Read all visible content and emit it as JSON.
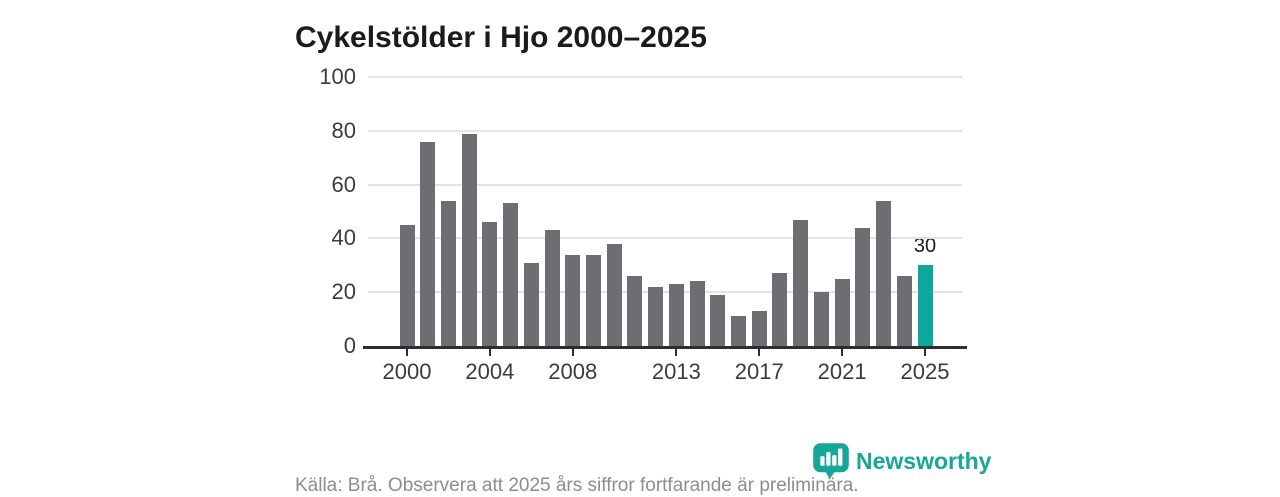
{
  "title": "Cykelstölder i Hjo 2000–2025",
  "footer": {
    "source_note": "Källa: Brå. Observera att 2025 års siffror fortfarande är preliminära.",
    "brand": "Newsworthy"
  },
  "colors": {
    "title_text": "#1b1b1b",
    "tick_text": "#3c3c3c",
    "gridline": "#e4e4e4",
    "axis": "#2e2e2e",
    "bar": "#6e6e72",
    "highlight": "#0da89d",
    "footer_text": "#8d8d92",
    "brand_teal": "#16a69a"
  },
  "chart_data": {
    "type": "bar",
    "title": "Cykelstölder i Hjo 2000–2025",
    "x": [
      2000,
      2001,
      2002,
      2003,
      2004,
      2005,
      2006,
      2007,
      2008,
      2009,
      2010,
      2011,
      2012,
      2013,
      2014,
      2015,
      2016,
      2017,
      2018,
      2019,
      2020,
      2021,
      2022,
      2023,
      2024,
      2025
    ],
    "values": [
      45,
      76,
      54,
      79,
      46,
      53,
      31,
      43,
      34,
      34,
      38,
      26,
      22,
      23,
      24,
      19,
      11,
      13,
      27,
      47,
      20,
      25,
      44,
      54,
      26,
      30
    ],
    "highlight_x": 2025,
    "highlight_value_label": "30",
    "y_ticks": [
      0,
      20,
      40,
      60,
      80,
      100
    ],
    "x_tick_labels": [
      "2000",
      "2004",
      "2008",
      "2013",
      "2017",
      "2021",
      "2025"
    ],
    "ylim": [
      0,
      100
    ],
    "xlabel": "",
    "ylabel": "",
    "grid": "horizontal",
    "legend": "none"
  }
}
